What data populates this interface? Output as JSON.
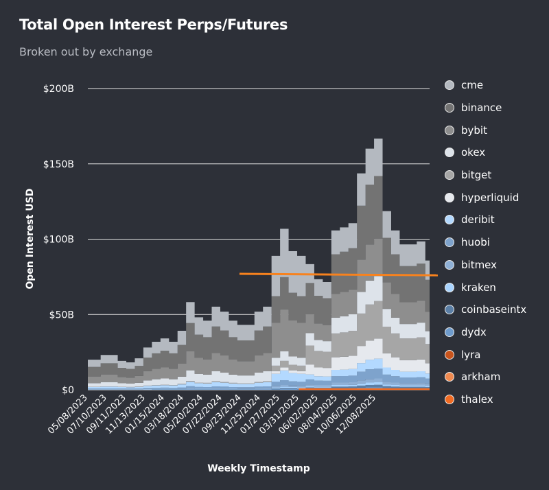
{
  "title": "Total Open Interest Perps/Futures",
  "subtitle": "Broken out by exchange",
  "chart_data": {
    "type": "area",
    "stacked": true,
    "title": "Total Open Interest Perps/Futures",
    "subtitle": "Broken out by exchange",
    "xlabel": "Weekly Timestamp",
    "ylabel": "Open Interest USD",
    "ylim": [
      0,
      200
    ],
    "yticks": [
      0,
      50,
      100,
      150,
      200
    ],
    "ytick_labels": [
      "$0",
      "$50B",
      "$100B",
      "$150B",
      "$200B"
    ],
    "grid": "horizontal",
    "legend": "right",
    "xtick_labels": [
      "05/08/2023",
      "07/10/2023",
      "09/11/2023",
      "11/13/2023",
      "01/15/2024",
      "03/18/2024",
      "05/20/2024",
      "07/22/2024",
      "09/23/2024",
      "11/25/2024",
      "01/27/2025",
      "03/31/2025",
      "06/02/2025",
      "08/04/2025",
      "10/06/2025",
      "12/08/2025"
    ],
    "x": [
      "2023-05-08",
      "2023-06-05",
      "2023-07-03",
      "2023-07-31",
      "2023-08-28",
      "2023-09-25",
      "2023-10-23",
      "2023-11-20",
      "2023-12-18",
      "2024-01-15",
      "2024-02-12",
      "2024-03-11",
      "2024-04-08",
      "2024-05-06",
      "2024-06-03",
      "2024-07-01",
      "2024-07-29",
      "2024-08-26",
      "2024-09-23",
      "2024-10-21",
      "2024-11-18",
      "2024-12-16",
      "2025-01-13",
      "2025-02-10",
      "2025-03-10",
      "2025-04-07",
      "2025-05-05",
      "2025-06-02",
      "2025-06-30",
      "2025-07-28",
      "2025-08-25",
      "2025-09-22",
      "2025-10-20",
      "2025-11-17",
      "2025-12-15",
      "2026-01-12",
      "2026-02-09",
      "2026-03-09",
      "2026-04-06",
      "2026-05-04",
      "2026-06-01"
    ],
    "series": [
      {
        "name": "cme",
        "color": "#b4b9c0",
        "values": [
          4.8,
          4.8,
          5.5,
          5.5,
          4.6,
          4.3,
          5.0,
          6.7,
          7.7,
          8.2,
          7.7,
          9.4,
          13.9,
          11.5,
          11.0,
          13.2,
          12.5,
          11.0,
          10.3,
          10.3,
          12.5,
          13.2,
          26.7,
          32.1,
          27.6,
          26.7,
          12.5,
          11.0,
          10.7,
          15.8,
          16.1,
          16.5,
          21.5,
          23.9,
          24.9,
          17.7,
          15.8,
          14.4,
          14.4,
          14.7,
          12.8
        ]
      },
      {
        "name": "binance",
        "color": "#737373",
        "values": [
          6.4,
          6.4,
          7.4,
          7.4,
          6.1,
          5.8,
          6.7,
          9.0,
          10.2,
          10.9,
          10.2,
          12.5,
          18.6,
          15.4,
          14.7,
          17.6,
          16.6,
          14.7,
          13.8,
          13.8,
          16.6,
          17.6,
          17.8,
          21.4,
          18.4,
          17.8,
          20.8,
          18.3,
          17.8,
          26.3,
          26.8,
          27.5,
          35.8,
          39.8,
          41.5,
          29.5,
          26.3,
          24.0,
          24.0,
          24.5,
          21.3
        ]
      },
      {
        "name": "bybit",
        "color": "#8e8e8e",
        "values": [
          4.4,
          4.4,
          5.1,
          5.1,
          4.2,
          4.0,
          4.6,
          6.2,
          7.0,
          7.5,
          7.0,
          8.6,
          12.8,
          10.6,
          10.1,
          12.1,
          11.4,
          10.1,
          9.5,
          9.5,
          11.4,
          12.1,
          23.1,
          27.8,
          23.9,
          23.1,
          12.5,
          11.0,
          10.7,
          15.8,
          16.1,
          16.5,
          21.5,
          23.9,
          24.9,
          17.7,
          15.8,
          14.4,
          14.4,
          14.7,
          12.8
        ]
      },
      {
        "name": "okex",
        "color": "#dde3ea",
        "values": [
          2.4,
          2.4,
          2.8,
          2.8,
          2.3,
          2.2,
          2.5,
          3.4,
          3.8,
          4.1,
          3.8,
          4.7,
          7.0,
          5.8,
          5.5,
          6.6,
          6.2,
          5.5,
          5.2,
          5.2,
          6.2,
          6.6,
          5.3,
          6.4,
          5.5,
          5.3,
          8.3,
          7.3,
          7.1,
          10.5,
          10.7,
          11.0,
          14.3,
          15.9,
          16.6,
          11.8,
          10.5,
          9.6,
          9.6,
          9.8,
          8.5
        ]
      },
      {
        "name": "bitget",
        "color": "#a6a6a6",
        "values": [
          0.2,
          0.2,
          0.2,
          0.2,
          0.2,
          0.2,
          0.2,
          0.3,
          0.3,
          0.3,
          0.3,
          0.4,
          0.6,
          0.5,
          0.5,
          0.6,
          0.5,
          0.5,
          0.4,
          0.4,
          0.5,
          0.6,
          3.6,
          4.3,
          3.7,
          3.6,
          12.5,
          11.0,
          10.7,
          15.8,
          16.1,
          16.5,
          21.5,
          23.9,
          24.9,
          17.7,
          15.8,
          14.4,
          14.4,
          14.7,
          12.8
        ]
      },
      {
        "name": "hyperliquid",
        "color": "#e6e9ee",
        "values": [
          0,
          0,
          0,
          0,
          0,
          0,
          0,
          0,
          0,
          0,
          0,
          0,
          0,
          0,
          0,
          0,
          0,
          0,
          0,
          0,
          0,
          0,
          1.8,
          2.1,
          1.8,
          1.8,
          6.6,
          5.8,
          5.7,
          8.4,
          8.6,
          8.8,
          11.4,
          12.7,
          13.3,
          9.4,
          8.4,
          7.7,
          7.7,
          7.8,
          6.8
        ]
      },
      {
        "name": "deribit",
        "color": "#b3d9ff",
        "values": [
          1.0,
          1.0,
          1.2,
          1.2,
          1.0,
          0.9,
          1.1,
          1.4,
          1.6,
          1.7,
          1.6,
          2.0,
          2.9,
          2.4,
          2.3,
          2.8,
          2.6,
          2.3,
          2.2,
          2.2,
          2.6,
          2.8,
          5.3,
          6.4,
          5.5,
          5.3,
          3.3,
          2.9,
          2.8,
          4.2,
          4.3,
          4.4,
          5.7,
          6.4,
          6.6,
          4.7,
          4.2,
          3.8,
          3.8,
          3.9,
          3.4
        ]
      },
      {
        "name": "huobi",
        "color": "#7ea3cc",
        "values": [
          0.4,
          0.4,
          0.5,
          0.5,
          0.4,
          0.4,
          0.4,
          0.6,
          0.6,
          0.7,
          0.6,
          0.8,
          1.2,
          1.0,
          0.9,
          1.1,
          1.0,
          0.9,
          0.9,
          0.9,
          1.0,
          1.1,
          2.7,
          3.2,
          2.8,
          2.7,
          3.3,
          2.9,
          2.8,
          4.2,
          4.3,
          4.4,
          5.7,
          6.4,
          6.6,
          4.7,
          4.2,
          3.8,
          3.8,
          3.9,
          3.4
        ]
      },
      {
        "name": "bitmex",
        "color": "#8fb0d6",
        "values": [
          0.2,
          0.2,
          0.2,
          0.2,
          0.2,
          0.2,
          0.2,
          0.3,
          0.3,
          0.3,
          0.3,
          0.4,
          0.6,
          0.5,
          0.5,
          0.6,
          0.5,
          0.5,
          0.4,
          0.4,
          0.5,
          0.6,
          0.9,
          1.1,
          0.9,
          0.9,
          1.2,
          1.1,
          1.1,
          1.6,
          1.6,
          1.7,
          2.1,
          2.4,
          2.5,
          1.8,
          1.6,
          1.4,
          1.4,
          1.5,
          1.3
        ]
      },
      {
        "name": "kraken",
        "color": "#a9d4ff",
        "values": [
          0.1,
          0.1,
          0.1,
          0.1,
          0.1,
          0.1,
          0.1,
          0.1,
          0.2,
          0.2,
          0.2,
          0.2,
          0.3,
          0.2,
          0.2,
          0.3,
          0.3,
          0.2,
          0.2,
          0.2,
          0.3,
          0.3,
          0.9,
          1.1,
          0.9,
          0.9,
          0.8,
          0.7,
          0.7,
          1.1,
          1.1,
          1.1,
          1.4,
          1.6,
          1.7,
          1.2,
          1.1,
          1.0,
          1.0,
          1.0,
          0.9
        ]
      },
      {
        "name": "coinbaseintx",
        "color": "#5b7fa6",
        "values": [
          0,
          0,
          0,
          0,
          0,
          0,
          0,
          0,
          0,
          0,
          0,
          0,
          0,
          0,
          0,
          0,
          0,
          0,
          0,
          0,
          0,
          0,
          0.4,
          0.5,
          0.5,
          0.4,
          0.8,
          0.7,
          0.7,
          1.1,
          1.1,
          1.1,
          1.4,
          1.6,
          1.7,
          1.2,
          1.1,
          1.0,
          1.0,
          1.0,
          0.9
        ]
      },
      {
        "name": "dydx",
        "color": "#6e9bcc",
        "values": [
          0.1,
          0.1,
          0.1,
          0.1,
          0.1,
          0.1,
          0.1,
          0.1,
          0.2,
          0.2,
          0.2,
          0.2,
          0.3,
          0.2,
          0.2,
          0.3,
          0.3,
          0.2,
          0.2,
          0.2,
          0.3,
          0.3,
          0.4,
          0.5,
          0.5,
          0.4,
          0.4,
          0.4,
          0.4,
          0.5,
          0.5,
          0.6,
          0.7,
          0.8,
          0.8,
          0.6,
          0.5,
          0.5,
          0.5,
          0.5,
          0.4
        ]
      },
      {
        "name": "lyra",
        "color": "#c9541c",
        "values": [
          0,
          0,
          0,
          0,
          0,
          0,
          0,
          0,
          0,
          0,
          0,
          0,
          0,
          0,
          0,
          0,
          0,
          0,
          0,
          0,
          0,
          0,
          0,
          0,
          0,
          0,
          0,
          0,
          0,
          0,
          0,
          0,
          0,
          0,
          0,
          0,
          0,
          0,
          0,
          0,
          0
        ]
      },
      {
        "name": "arkham",
        "color": "#f08a50",
        "values": [
          0,
          0,
          0,
          0,
          0,
          0,
          0,
          0,
          0,
          0,
          0,
          0,
          0,
          0,
          0,
          0,
          0,
          0,
          0,
          0,
          0,
          0,
          0,
          0,
          0,
          0,
          0.2,
          0.1,
          0.1,
          0.2,
          0.2,
          0.2,
          0.3,
          0.3,
          0.3,
          0.2,
          0.2,
          0.2,
          0.2,
          0.2,
          0.2
        ]
      },
      {
        "name": "thalex",
        "color": "#f26b22",
        "values": [
          0,
          0,
          0,
          0,
          0,
          0,
          0,
          0,
          0,
          0,
          0,
          0,
          0,
          0,
          0,
          0,
          0,
          0,
          0,
          0,
          0,
          0,
          0,
          0,
          0,
          0,
          0.2,
          0.2,
          0.2,
          0.3,
          0.3,
          0.3,
          0.4,
          0.5,
          0.5,
          0.4,
          0.3,
          0.3,
          0.3,
          0.3,
          0.3
        ]
      }
    ],
    "overlay_line": {
      "color": "#f7821e",
      "x": [
        "2024-09-16",
        "2026-06-01"
      ],
      "values": [
        77,
        76
      ]
    }
  }
}
